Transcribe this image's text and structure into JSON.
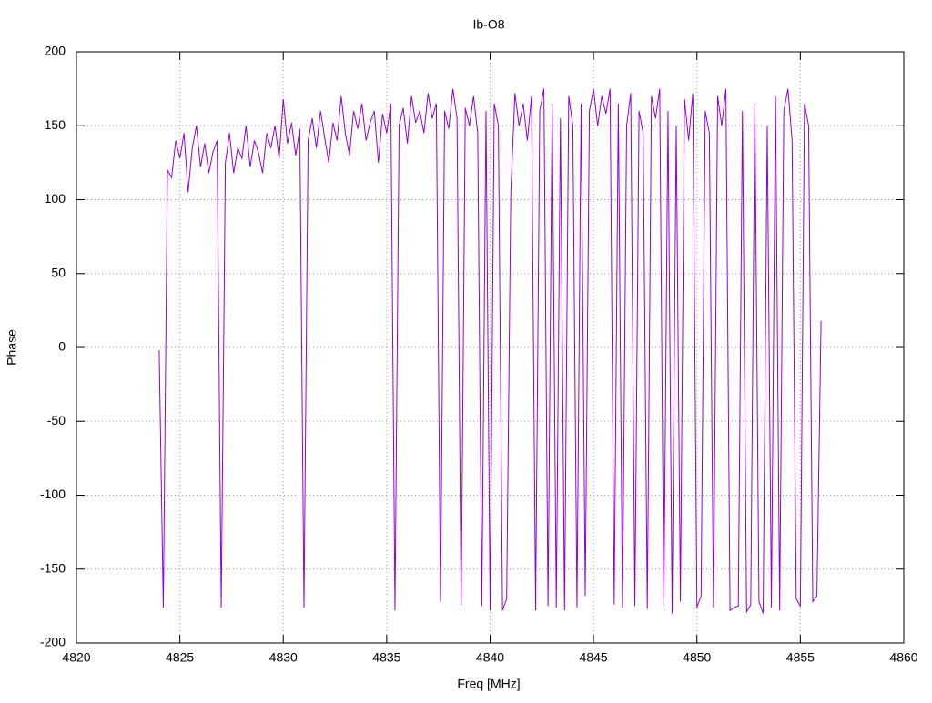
{
  "chart_data": {
    "type": "line",
    "title": "Ib-O8",
    "x_label": "Freq [MHz]",
    "y_label": "Phase",
    "x": [
      4824,
      4824.2,
      4824.4,
      4824.6,
      4824.8,
      4825,
      4825.2,
      4825.4,
      4825.6,
      4825.8,
      4826,
      4826.2,
      4826.4,
      4826.6,
      4826.8,
      4827,
      4827.2,
      4827.4,
      4827.6,
      4827.8,
      4828,
      4828.2,
      4828.4,
      4828.6,
      4828.8,
      4829,
      4829.2,
      4829.4,
      4829.6,
      4829.8,
      4830,
      4830.2,
      4830.4,
      4830.6,
      4830.8,
      4831,
      4831.2,
      4831.4,
      4831.6,
      4831.8,
      4832,
      4832.2,
      4832.4,
      4832.6,
      4832.8,
      4833,
      4833.2,
      4833.4,
      4833.6,
      4833.8,
      4834,
      4834.2,
      4834.4,
      4834.6,
      4834.8,
      4835,
      4835.2,
      4835.4,
      4835.6,
      4835.8,
      4836,
      4836.2,
      4836.4,
      4836.6,
      4836.8,
      4837,
      4837.2,
      4837.4,
      4837.6,
      4837.8,
      4838,
      4838.2,
      4838.4,
      4838.6,
      4838.8,
      4839,
      4839.2,
      4839.4,
      4839.6,
      4839.8,
      4840,
      4840.2,
      4840.4,
      4840.6,
      4840.8,
      4841,
      4841.2,
      4841.4,
      4841.6,
      4841.8,
      4842,
      4842.2,
      4842.4,
      4842.6,
      4842.8,
      4843,
      4843.2,
      4843.4,
      4843.6,
      4843.8,
      4844,
      4844.2,
      4844.4,
      4844.6,
      4844.8,
      4845,
      4845.2,
      4845.4,
      4845.6,
      4845.8,
      4846,
      4846.2,
      4846.4,
      4846.6,
      4846.8,
      4847,
      4847.2,
      4847.4,
      4847.6,
      4847.8,
      4848,
      4848.2,
      4848.4,
      4848.6,
      4848.8,
      4849,
      4849.2,
      4849.4,
      4849.6,
      4849.8,
      4850,
      4850.2,
      4850.4,
      4850.6,
      4850.8,
      4851,
      4851.2,
      4851.4,
      4851.6,
      4851.8,
      4852,
      4852.2,
      4852.4,
      4852.6,
      4852.8,
      4853,
      4853.2,
      4853.4,
      4853.6,
      4853.8,
      4854,
      4854.2,
      4854.4,
      4854.6,
      4854.8,
      4855,
      4855.2,
      4855.4,
      4855.6,
      4855.8,
      4856
    ],
    "values": [
      -2,
      -176,
      120,
      115,
      140,
      128,
      145,
      105,
      135,
      150,
      122,
      138,
      118,
      132,
      140,
      -176,
      125,
      145,
      118,
      135,
      128,
      150,
      122,
      140,
      132,
      118,
      145,
      135,
      150,
      128,
      168,
      138,
      152,
      130,
      148,
      -176,
      140,
      155,
      135,
      160,
      142,
      125,
      152,
      140,
      170,
      145,
      130,
      160,
      148,
      165,
      140,
      152,
      160,
      125,
      158,
      145,
      165,
      -178,
      150,
      162,
      138,
      170,
      152,
      160,
      145,
      172,
      155,
      165,
      -172,
      160,
      148,
      175,
      155,
      -175,
      162,
      150,
      170,
      145,
      -175,
      160,
      -178,
      165,
      150,
      -178,
      -170,
      105,
      172,
      150,
      165,
      140,
      170,
      -178,
      160,
      175,
      -175,
      165,
      -176,
      155,
      -178,
      170,
      150,
      -176,
      165,
      -168,
      160,
      175,
      150,
      170,
      158,
      175,
      -174,
      165,
      -176,
      150,
      172,
      -175,
      160,
      145,
      -177,
      170,
      155,
      175,
      -175,
      160,
      -180,
      150,
      -172,
      168,
      140,
      172,
      -176,
      -168,
      160,
      145,
      -176,
      170,
      150,
      175,
      -178,
      -176,
      -175,
      160,
      -179,
      -174,
      165,
      -172,
      -180,
      150,
      -176,
      170,
      -178,
      160,
      175,
      140,
      -170,
      -175,
      165,
      150,
      -172,
      -168,
      18
    ],
    "color": "#9400d3",
    "xlim": [
      4820,
      4860
    ],
    "xticks": [
      4820,
      4825,
      4830,
      4835,
      4840,
      4845,
      4850,
      4855,
      4860
    ],
    "ylim": [
      -200,
      200
    ],
    "yticks": [
      -200,
      -150,
      -100,
      -50,
      0,
      50,
      100,
      150,
      200
    ],
    "grid": true
  }
}
